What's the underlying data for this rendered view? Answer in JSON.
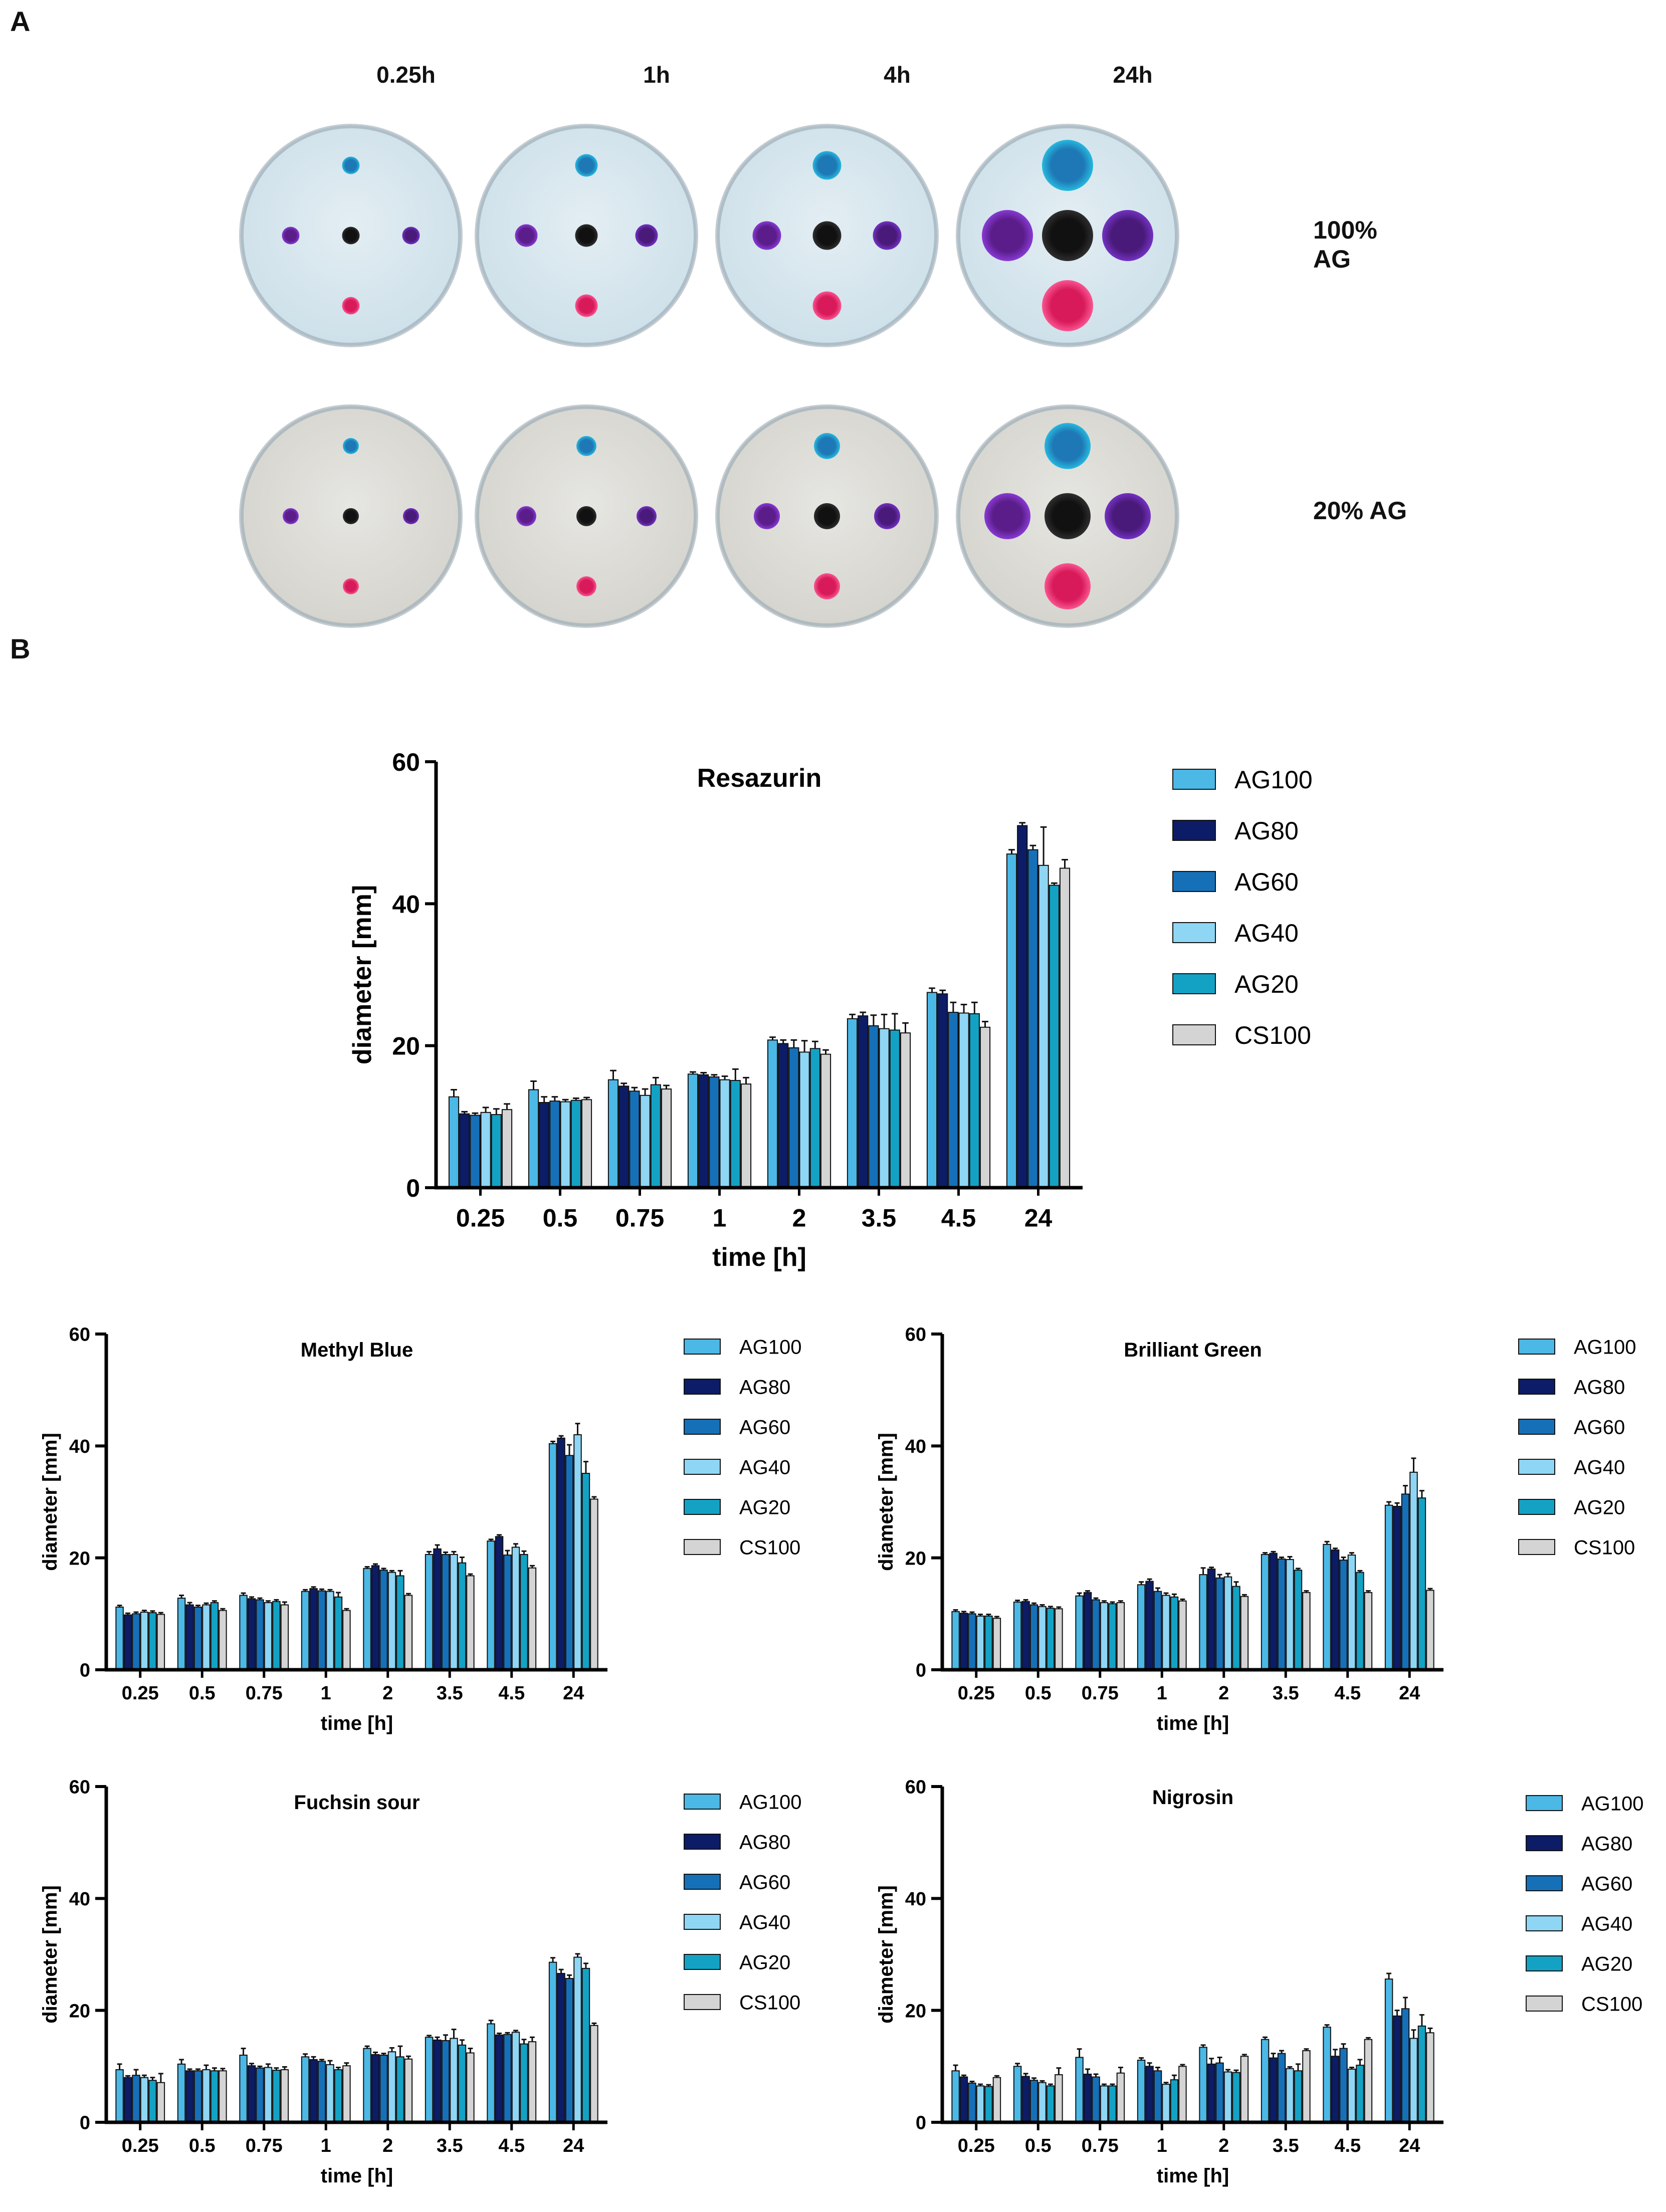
{
  "panel_a": {
    "letter": "A",
    "time_labels": [
      "0.25h",
      "1h",
      "4h",
      "24h"
    ],
    "row_labels": [
      "100% AG",
      "20% AG"
    ]
  },
  "panel_b": {
    "letter": "B"
  },
  "colors": {
    "AG100": "#4bb8e6",
    "AG80": "#0d1c66",
    "AG60": "#1670b8",
    "AG40": "#8fd6f5",
    "AG20": "#14a2c4",
    "CS100": "#d4d4d4"
  },
  "chart_data": [
    {
      "type": "bar",
      "title": "Resazurin",
      "xlabel": "time [h]",
      "ylabel": "diameter [mm]",
      "ylim": [
        0,
        60
      ],
      "yticks": [
        0,
        20,
        40,
        60
      ],
      "categories": [
        "0.25",
        "0.5",
        "0.75",
        "1",
        "2",
        "3.5",
        "4.5",
        "24"
      ],
      "series": [
        {
          "name": "AG100",
          "values": [
            12.8,
            13.8,
            15.2,
            16.0,
            20.8,
            23.8,
            27.5,
            47.0
          ],
          "errors": [
            1.0,
            1.2,
            1.3,
            0.3,
            0.4,
            0.6,
            0.6,
            0.6
          ]
        },
        {
          "name": "AG80",
          "values": [
            10.4,
            12.0,
            14.3,
            15.9,
            20.3,
            24.2,
            27.3,
            51.0
          ],
          "errors": [
            0.3,
            0.8,
            0.4,
            0.3,
            0.5,
            0.5,
            0.5,
            0.4
          ]
        },
        {
          "name": "AG60",
          "values": [
            10.2,
            12.2,
            13.6,
            15.6,
            19.7,
            22.8,
            24.7,
            47.6
          ],
          "errors": [
            0.3,
            0.6,
            0.5,
            0.3,
            1.1,
            1.5,
            1.4,
            0.6
          ]
        },
        {
          "name": "AG40",
          "values": [
            10.6,
            12.1,
            13.0,
            15.2,
            19.1,
            22.4,
            24.6,
            45.4
          ],
          "errors": [
            0.7,
            0.3,
            0.9,
            0.5,
            1.6,
            2.0,
            1.2,
            5.4
          ]
        },
        {
          "name": "AG20",
          "values": [
            10.3,
            12.3,
            14.5,
            15.1,
            19.6,
            22.2,
            24.5,
            42.6
          ],
          "errors": [
            0.8,
            0.3,
            1.0,
            1.6,
            1.0,
            2.3,
            1.6,
            0.3
          ]
        },
        {
          "name": "CS100",
          "values": [
            11.0,
            12.4,
            13.9,
            14.6,
            18.8,
            21.8,
            22.6,
            45.0
          ],
          "errors": [
            0.8,
            0.3,
            0.5,
            0.9,
            0.6,
            1.4,
            0.8,
            1.2
          ]
        }
      ]
    },
    {
      "type": "bar",
      "title": "Methyl Blue",
      "xlabel": "time [h]",
      "ylabel": "diameter [mm]",
      "ylim": [
        0,
        60
      ],
      "yticks": [
        0,
        20,
        40,
        60
      ],
      "categories": [
        "0.25",
        "0.5",
        "0.75",
        "1",
        "2",
        "3.5",
        "4.5",
        "24"
      ],
      "series": [
        {
          "name": "AG100",
          "values": [
            11.2,
            12.8,
            13.3,
            14.0,
            18.1,
            20.6,
            23.0,
            40.4
          ],
          "errors": [
            0.3,
            0.5,
            0.4,
            0.3,
            0.3,
            0.5,
            0.3,
            0.4
          ]
        },
        {
          "name": "AG80",
          "values": [
            9.8,
            11.6,
            12.7,
            14.5,
            18.6,
            21.6,
            23.8,
            41.4
          ],
          "errors": [
            0.3,
            0.4,
            0.3,
            0.3,
            0.3,
            0.7,
            0.3,
            0.4
          ]
        },
        {
          "name": "AG60",
          "values": [
            10.0,
            11.2,
            12.5,
            14.1,
            17.8,
            20.6,
            20.5,
            38.3
          ],
          "errors": [
            0.3,
            0.3,
            0.3,
            0.3,
            0.3,
            0.4,
            0.8,
            1.9
          ]
        },
        {
          "name": "AG40",
          "values": [
            10.3,
            11.6,
            12.0,
            14.0,
            17.4,
            20.6,
            21.9,
            42.0
          ],
          "errors": [
            0.3,
            0.3,
            0.3,
            0.3,
            0.3,
            0.5,
            0.6,
            2.0
          ]
        },
        {
          "name": "AG20",
          "values": [
            10.2,
            12.0,
            12.2,
            13.0,
            16.8,
            19.1,
            20.6,
            35.1
          ],
          "errors": [
            0.3,
            0.3,
            0.3,
            0.8,
            0.9,
            1.0,
            0.6,
            2.1
          ]
        },
        {
          "name": "CS100",
          "values": [
            9.9,
            10.6,
            11.6,
            10.6,
            13.3,
            16.8,
            18.2,
            30.5
          ],
          "errors": [
            0.3,
            0.3,
            0.5,
            0.3,
            0.3,
            0.3,
            0.4,
            0.4
          ]
        }
      ]
    },
    {
      "type": "bar",
      "title": "Brilliant Green",
      "xlabel": "time [h]",
      "ylabel": "diameter [mm]",
      "ylim": [
        0,
        60
      ],
      "yticks": [
        0,
        20,
        40,
        60
      ],
      "categories": [
        "0.25",
        "0.5",
        "0.75",
        "1",
        "2",
        "3.5",
        "4.5",
        "24"
      ],
      "series": [
        {
          "name": "AG100",
          "values": [
            10.4,
            12.1,
            13.2,
            15.2,
            17.0,
            20.6,
            22.4,
            29.4
          ],
          "errors": [
            0.3,
            0.3,
            0.5,
            0.5,
            1.2,
            0.3,
            0.5,
            0.6
          ]
        },
        {
          "name": "AG80",
          "values": [
            10.1,
            12.2,
            13.8,
            15.8,
            18.0,
            20.8,
            21.4,
            29.2
          ],
          "errors": [
            0.3,
            0.3,
            0.3,
            0.4,
            0.3,
            0.3,
            0.3,
            0.6
          ]
        },
        {
          "name": "AG60",
          "values": [
            10.0,
            11.6,
            12.5,
            14.0,
            16.4,
            19.8,
            19.6,
            31.4
          ],
          "errors": [
            0.3,
            0.3,
            0.3,
            0.6,
            0.6,
            0.3,
            0.5,
            1.5
          ]
        },
        {
          "name": "AG40",
          "values": [
            9.6,
            11.3,
            12.0,
            13.3,
            16.6,
            19.7,
            20.5,
            35.3
          ],
          "errors": [
            0.3,
            0.3,
            0.3,
            0.4,
            0.6,
            0.5,
            0.4,
            2.5
          ]
        },
        {
          "name": "AG20",
          "values": [
            9.6,
            11.0,
            11.8,
            13.0,
            14.9,
            17.8,
            17.4,
            30.7
          ],
          "errors": [
            0.3,
            0.3,
            0.3,
            0.5,
            0.8,
            0.3,
            0.3,
            1.3
          ]
        },
        {
          "name": "CS100",
          "values": [
            9.2,
            10.9,
            12.0,
            12.3,
            13.1,
            13.8,
            13.8,
            14.2
          ],
          "errors": [
            0.3,
            0.3,
            0.3,
            0.3,
            0.3,
            0.3,
            0.3,
            0.3
          ]
        }
      ]
    },
    {
      "type": "bar",
      "title": "Fuchsin sour",
      "xlabel": "time [h]",
      "ylabel": "diameter [mm]",
      "ylim": [
        0,
        60
      ],
      "yticks": [
        0,
        20,
        40,
        60
      ],
      "categories": [
        "0.25",
        "0.5",
        "0.75",
        "1",
        "2",
        "3.5",
        "4.5",
        "24"
      ],
      "series": [
        {
          "name": "AG100",
          "values": [
            9.4,
            10.4,
            12.0,
            11.7,
            13.2,
            15.2,
            17.6,
            28.6
          ],
          "errors": [
            1.0,
            0.8,
            1.2,
            0.5,
            0.4,
            0.3,
            0.6,
            0.8
          ]
        },
        {
          "name": "AG80",
          "values": [
            8.0,
            9.2,
            10.1,
            11.2,
            12.1,
            14.7,
            15.6,
            26.6
          ],
          "errors": [
            0.3,
            0.3,
            0.4,
            0.5,
            0.4,
            0.5,
            0.3,
            0.7
          ]
        },
        {
          "name": "AG60",
          "values": [
            8.4,
            9.2,
            9.7,
            10.9,
            12.0,
            14.6,
            15.7,
            25.7
          ],
          "errors": [
            1.0,
            0.3,
            0.3,
            0.3,
            0.3,
            1.0,
            0.3,
            0.6
          ]
        },
        {
          "name": "AG40",
          "values": [
            8.0,
            9.4,
            9.8,
            10.3,
            12.6,
            15.0,
            16.1,
            29.5
          ],
          "errors": [
            0.4,
            0.8,
            0.6,
            0.7,
            0.7,
            1.6,
            0.3,
            0.6
          ]
        },
        {
          "name": "AG20",
          "values": [
            7.5,
            9.2,
            9.3,
            9.4,
            11.7,
            13.8,
            14.0,
            27.5
          ],
          "errors": [
            0.5,
            0.5,
            0.4,
            0.4,
            1.9,
            0.9,
            0.8,
            0.9
          ]
        },
        {
          "name": "CS100",
          "values": [
            7.1,
            9.2,
            9.4,
            10.1,
            11.3,
            12.4,
            14.4,
            17.3
          ],
          "errors": [
            1.6,
            0.4,
            0.5,
            0.5,
            0.5,
            0.8,
            0.8,
            0.4
          ]
        }
      ]
    },
    {
      "type": "bar",
      "title": "Nigrosin",
      "xlabel": "time [h]",
      "ylabel": "diameter [mm]",
      "ylim": [
        0,
        60
      ],
      "yticks": [
        0,
        20,
        40,
        60
      ],
      "categories": [
        "0.25",
        "0.5",
        "0.75",
        "1",
        "2",
        "3.5",
        "4.5",
        "24"
      ],
      "series": [
        {
          "name": "AG100",
          "values": [
            9.2,
            10.0,
            11.6,
            11.1,
            13.4,
            14.8,
            17.0,
            25.6
          ],
          "errors": [
            1.0,
            0.5,
            1.5,
            0.4,
            0.4,
            0.4,
            0.4,
            1.0
          ]
        },
        {
          "name": "AG80",
          "values": [
            8.1,
            8.2,
            8.6,
            10.0,
            10.4,
            11.5,
            11.8,
            19.0
          ],
          "errors": [
            0.3,
            0.5,
            0.9,
            0.6,
            1.0,
            0.8,
            1.2,
            1.0
          ]
        },
        {
          "name": "AG60",
          "values": [
            7.0,
            7.5,
            8.1,
            9.2,
            10.6,
            12.3,
            13.2,
            20.3
          ],
          "errors": [
            0.3,
            0.4,
            0.5,
            0.6,
            1.0,
            0.5,
            0.8,
            2.0
          ]
        },
        {
          "name": "AG40",
          "values": [
            6.5,
            7.1,
            6.5,
            6.8,
            9.0,
            9.6,
            9.5,
            15.0
          ],
          "errors": [
            0.3,
            0.3,
            0.3,
            0.3,
            0.4,
            0.3,
            0.3,
            1.5
          ]
        },
        {
          "name": "AG20",
          "values": [
            6.4,
            6.5,
            6.5,
            7.6,
            8.9,
            9.2,
            10.2,
            17.2
          ],
          "errors": [
            0.3,
            0.3,
            0.3,
            0.8,
            0.4,
            1.2,
            1.0,
            2.0
          ]
        },
        {
          "name": "CS100",
          "values": [
            8.0,
            8.5,
            8.8,
            10.0,
            11.8,
            12.8,
            14.8,
            16.0
          ],
          "errors": [
            0.3,
            1.2,
            1.0,
            0.3,
            0.3,
            0.3,
            0.3,
            0.8
          ]
        }
      ]
    }
  ]
}
